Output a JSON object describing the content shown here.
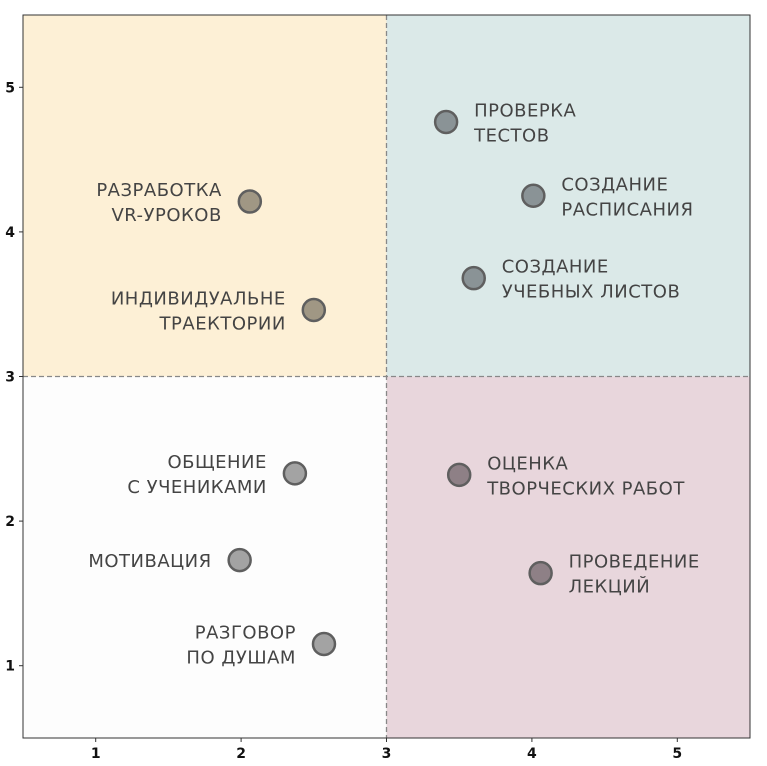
{
  "chart_data": {
    "type": "scatter",
    "title": "",
    "xlabel": "",
    "ylabel": "",
    "xlim": [
      0.5,
      5.5
    ],
    "ylim": [
      0.5,
      5.5
    ],
    "xticks": [
      "1",
      "2",
      "3",
      "4",
      "5"
    ],
    "yticks": [
      "1",
      "2",
      "3",
      "4",
      "5"
    ],
    "grid": false,
    "divider": {
      "x": 3,
      "y": 3,
      "style": "dashed",
      "color": "#888888"
    },
    "quadrant_colors": {
      "top_left": "#fdf0d6",
      "top_right": "#dbe9e8",
      "bottom_left": "#fdfdfd",
      "bottom_right": "#e8d6dc"
    },
    "points": [
      {
        "label": [
          "ПРОВЕРКА",
          "ТЕСТОВ"
        ],
        "x": 3.41,
        "y": 4.76,
        "color": "#8a9396"
      },
      {
        "label": [
          "СОЗДАНИЕ",
          "РАСПИСАНИЯ"
        ],
        "x": 4.01,
        "y": 4.25,
        "color": "#8a9396"
      },
      {
        "label": [
          "СОЗДАНИЕ",
          "УЧЕБНЫХ ЛИСТОВ"
        ],
        "x": 3.6,
        "y": 3.68,
        "color": "#8a9396"
      },
      {
        "label": [
          "РАЗРАБОТКА",
          "VR-УРОКОВ"
        ],
        "x": 2.06,
        "y": 4.21,
        "color": "#a09784"
      },
      {
        "label": [
          "ИНДИВИДУАЛЬНЕ",
          "ТРАЕКТОРИИ"
        ],
        "x": 2.5,
        "y": 3.46,
        "color": "#a09784"
      },
      {
        "label": [
          "ОБЩЕНИЕ",
          "С УЧЕНИКАМИ"
        ],
        "x": 2.37,
        "y": 2.33,
        "color": "#a3a3a3"
      },
      {
        "label": [
          "МОТИВАЦИЯ"
        ],
        "x": 1.99,
        "y": 1.73,
        "color": "#a3a3a3"
      },
      {
        "label": [
          "РАЗГОВОР",
          "ПО ДУШАМ"
        ],
        "x": 2.57,
        "y": 1.15,
        "color": "#a3a3a3"
      },
      {
        "label": [
          "ОЦЕНКА",
          "ТВОРЧЕСКИХ РАБОТ"
        ],
        "x": 3.5,
        "y": 2.32,
        "color": "#8e8086"
      },
      {
        "label": [
          "ПРОВЕДЕНИЕ",
          "ЛЕКЦИЙ"
        ],
        "x": 4.06,
        "y": 1.64,
        "color": "#8e8086"
      }
    ]
  }
}
